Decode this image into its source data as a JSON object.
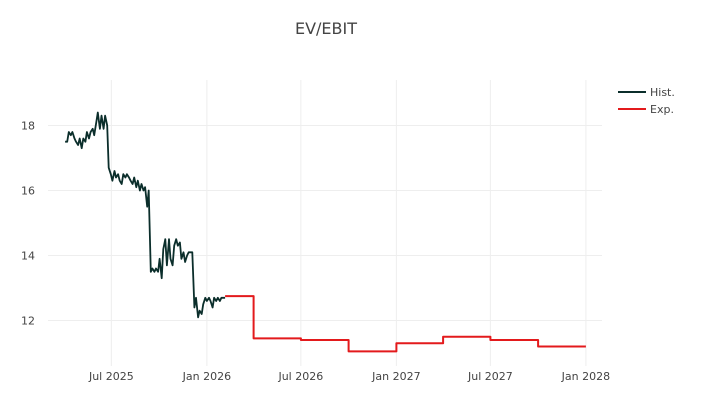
{
  "chart_data": {
    "type": "line",
    "title": "EV/EBIT",
    "xlabel": "",
    "ylabel": "",
    "x_range": [
      "2025-03-01",
      "2028-02-01"
    ],
    "y_range": [
      10.6,
      19.4
    ],
    "x_ticks": [
      {
        "date": "2025-07-01",
        "label": "Jul 2025"
      },
      {
        "date": "2026-01-01",
        "label": "Jan 2026"
      },
      {
        "date": "2026-07-01",
        "label": "Jul 2026"
      },
      {
        "date": "2027-01-01",
        "label": "Jan 2027"
      },
      {
        "date": "2027-07-01",
        "label": "Jul 2027"
      },
      {
        "date": "2028-01-01",
        "label": "Jan 2028"
      }
    ],
    "y_ticks": [
      {
        "value": 12,
        "label": "12"
      },
      {
        "value": 14,
        "label": "14"
      },
      {
        "value": 16,
        "label": "16"
      },
      {
        "value": 18,
        "label": "18"
      }
    ],
    "grid": true,
    "legend_position": "top-right",
    "series": [
      {
        "name": "Hist.",
        "color": "#0b2e2b",
        "points": [
          [
            "2025-04-03",
            17.5
          ],
          [
            "2025-04-07",
            17.5
          ],
          [
            "2025-04-10",
            17.8
          ],
          [
            "2025-04-14",
            17.7
          ],
          [
            "2025-04-17",
            17.8
          ],
          [
            "2025-04-21",
            17.6
          ],
          [
            "2025-04-24",
            17.5
          ],
          [
            "2025-04-28",
            17.4
          ],
          [
            "2025-05-01",
            17.6
          ],
          [
            "2025-05-05",
            17.3
          ],
          [
            "2025-05-08",
            17.6
          ],
          [
            "2025-05-12",
            17.5
          ],
          [
            "2025-05-15",
            17.8
          ],
          [
            "2025-05-19",
            17.6
          ],
          [
            "2025-05-22",
            17.8
          ],
          [
            "2025-05-26",
            17.9
          ],
          [
            "2025-05-29",
            17.7
          ],
          [
            "2025-06-02",
            18.1
          ],
          [
            "2025-06-05",
            18.4
          ],
          [
            "2025-06-09",
            17.9
          ],
          [
            "2025-06-12",
            18.3
          ],
          [
            "2025-06-16",
            17.9
          ],
          [
            "2025-06-19",
            18.3
          ],
          [
            "2025-06-23",
            18.0
          ],
          [
            "2025-06-26",
            16.7
          ],
          [
            "2025-06-30",
            16.5
          ],
          [
            "2025-07-03",
            16.3
          ],
          [
            "2025-07-07",
            16.6
          ],
          [
            "2025-07-10",
            16.4
          ],
          [
            "2025-07-14",
            16.5
          ],
          [
            "2025-07-17",
            16.3
          ],
          [
            "2025-07-21",
            16.2
          ],
          [
            "2025-07-24",
            16.5
          ],
          [
            "2025-07-28",
            16.4
          ],
          [
            "2025-07-31",
            16.5
          ],
          [
            "2025-08-04",
            16.4
          ],
          [
            "2025-08-07",
            16.3
          ],
          [
            "2025-08-11",
            16.2
          ],
          [
            "2025-08-14",
            16.4
          ],
          [
            "2025-08-18",
            16.1
          ],
          [
            "2025-08-21",
            16.3
          ],
          [
            "2025-08-25",
            16.0
          ],
          [
            "2025-08-28",
            16.2
          ],
          [
            "2025-09-01",
            16.0
          ],
          [
            "2025-09-04",
            16.1
          ],
          [
            "2025-09-08",
            15.5
          ],
          [
            "2025-09-11",
            16.0
          ],
          [
            "2025-09-15",
            13.5
          ],
          [
            "2025-09-18",
            13.6
          ],
          [
            "2025-09-22",
            13.5
          ],
          [
            "2025-09-25",
            13.6
          ],
          [
            "2025-09-29",
            13.5
          ],
          [
            "2025-10-02",
            13.9
          ],
          [
            "2025-10-06",
            13.3
          ],
          [
            "2025-10-09",
            14.2
          ],
          [
            "2025-10-13",
            14.5
          ],
          [
            "2025-10-16",
            13.7
          ],
          [
            "2025-10-20",
            14.5
          ],
          [
            "2025-10-23",
            13.9
          ],
          [
            "2025-10-27",
            13.7
          ],
          [
            "2025-10-30",
            14.3
          ],
          [
            "2025-11-03",
            14.5
          ],
          [
            "2025-11-06",
            14.3
          ],
          [
            "2025-11-10",
            14.4
          ],
          [
            "2025-11-13",
            13.9
          ],
          [
            "2025-11-17",
            14.1
          ],
          [
            "2025-11-20",
            13.8
          ],
          [
            "2025-11-24",
            14.0
          ],
          [
            "2025-11-27",
            14.1
          ],
          [
            "2025-12-01",
            14.1
          ],
          [
            "2025-12-04",
            14.1
          ],
          [
            "2025-12-08",
            12.4
          ],
          [
            "2025-12-11",
            12.7
          ],
          [
            "2025-12-15",
            12.1
          ],
          [
            "2025-12-18",
            12.3
          ],
          [
            "2025-12-22",
            12.2
          ],
          [
            "2025-12-25",
            12.5
          ],
          [
            "2025-12-29",
            12.7
          ],
          [
            "2026-01-01",
            12.6
          ],
          [
            "2026-01-05",
            12.7
          ],
          [
            "2026-01-08",
            12.6
          ],
          [
            "2026-01-12",
            12.4
          ],
          [
            "2026-01-15",
            12.7
          ],
          [
            "2026-01-19",
            12.6
          ],
          [
            "2026-01-22",
            12.7
          ],
          [
            "2026-01-26",
            12.6
          ],
          [
            "2026-01-29",
            12.7
          ],
          [
            "2026-02-02",
            12.7
          ],
          [
            "2026-02-05",
            12.7
          ]
        ]
      },
      {
        "name": "Exp.",
        "color": "#e31a1c",
        "shape": "hv",
        "points": [
          [
            "2026-02-05",
            12.75
          ],
          [
            "2026-04-01",
            11.45
          ],
          [
            "2026-07-01",
            11.4
          ],
          [
            "2026-10-01",
            11.05
          ],
          [
            "2027-01-01",
            11.3
          ],
          [
            "2027-04-01",
            11.5
          ],
          [
            "2027-07-01",
            11.4
          ],
          [
            "2027-10-01",
            11.2
          ],
          [
            "2028-01-01",
            11.2
          ]
        ]
      }
    ]
  }
}
